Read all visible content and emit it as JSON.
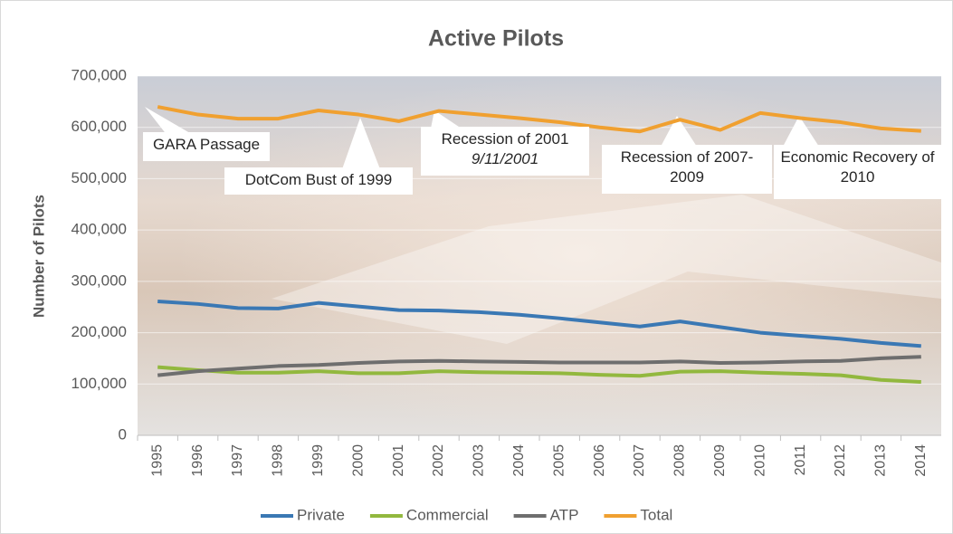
{
  "chart_data": {
    "type": "line",
    "title": "Active Pilots",
    "y_label": "Number of Pilots",
    "categories": [
      "1995",
      "1996",
      "1997",
      "1998",
      "1999",
      "2000",
      "2001",
      "2002",
      "2003",
      "2004",
      "2005",
      "2006",
      "2007",
      "2008",
      "2009",
      "2010",
      "2011",
      "2012",
      "2013",
      "2014"
    ],
    "series": [
      {
        "name": "Private",
        "color": "#3a78b4",
        "values": [
          261000,
          256000,
          248000,
          247000,
          258000,
          251000,
          244000,
          243000,
          240000,
          235000,
          228000,
          220000,
          212000,
          222000,
          211000,
          200000,
          194000,
          188000,
          180000,
          174000
        ]
      },
      {
        "name": "Commercial",
        "color": "#92b83e",
        "values": [
          133000,
          127000,
          122000,
          122000,
          125000,
          121000,
          121000,
          125000,
          123000,
          122000,
          121000,
          118000,
          116000,
          124000,
          125000,
          122000,
          120000,
          117000,
          108000,
          104000
        ]
      },
      {
        "name": "ATP",
        "color": "#6e6e6e",
        "values": [
          117000,
          125000,
          130000,
          135000,
          137000,
          141000,
          144000,
          145000,
          144000,
          143000,
          142000,
          142000,
          142000,
          144000,
          141000,
          142000,
          144000,
          145000,
          150000,
          153000
        ]
      },
      {
        "name": "Total",
        "color": "#f0a030",
        "values": [
          640000,
          625000,
          617000,
          617000,
          633000,
          625000,
          612000,
          632000,
          625000,
          618000,
          610000,
          600000,
          592000,
          615000,
          595000,
          628000,
          618000,
          610000,
          598000,
          593000
        ]
      }
    ],
    "ylim": [
      0,
      700000
    ],
    "yticks": [
      0,
      {
        "value": 100000,
        "label": "100,000"
      },
      {
        "value": 200000,
        "label": "200,000"
      },
      {
        "value": 300000,
        "label": "300,000"
      },
      {
        "value": 400000,
        "label": "400,000"
      },
      {
        "value": 500000,
        "label": "500,000"
      },
      {
        "value": 600000,
        "label": "600,000"
      },
      {
        "value": 700000,
        "label": "700,000"
      }
    ],
    "grid": true,
    "legend": "bottom",
    "annotations": [
      {
        "text": "GARA Passage"
      },
      {
        "text": "DotCom Bust of 1999"
      },
      {
        "text": "Recession of 2001",
        "subtext": "9/11/2001"
      },
      {
        "text": "Recession of 2007-2009"
      },
      {
        "text": "Economic Recovery of 2010"
      }
    ]
  }
}
